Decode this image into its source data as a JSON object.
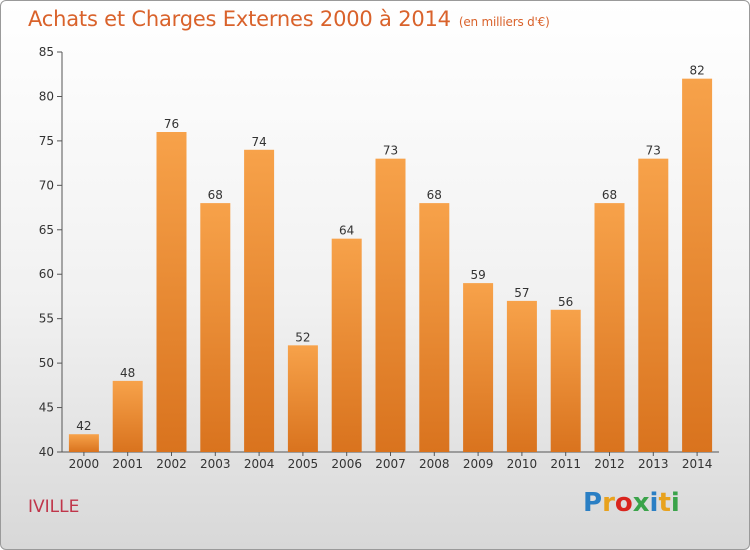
{
  "chart_data": {
    "type": "bar",
    "title": "Achats et Charges Externes 2000 à 2014",
    "unit_label": "(en milliers d'€)",
    "categories": [
      "2000",
      "2001",
      "2002",
      "2003",
      "2004",
      "2005",
      "2006",
      "2007",
      "2008",
      "2009",
      "2010",
      "2011",
      "2012",
      "2013",
      "2014"
    ],
    "values": [
      42,
      48,
      76,
      68,
      74,
      52,
      64,
      73,
      68,
      59,
      57,
      56,
      68,
      73,
      82
    ],
    "ylim": [
      40,
      85
    ],
    "yticks": [
      40,
      45,
      50,
      55,
      60,
      65,
      70,
      75,
      80,
      85
    ],
    "grid": false,
    "legend": "none",
    "bar_color_top": "#f7a24a",
    "bar_color_bottom": "#d9731e"
  },
  "footer": {
    "commune": "IVILLE",
    "logo_text": "Proxiti",
    "logo_colors": [
      "#2a7fc4",
      "#e8a21e",
      "#d9251e",
      "#3aa34a",
      "#2a7fc4",
      "#e8a21e",
      "#3aa34a"
    ]
  }
}
